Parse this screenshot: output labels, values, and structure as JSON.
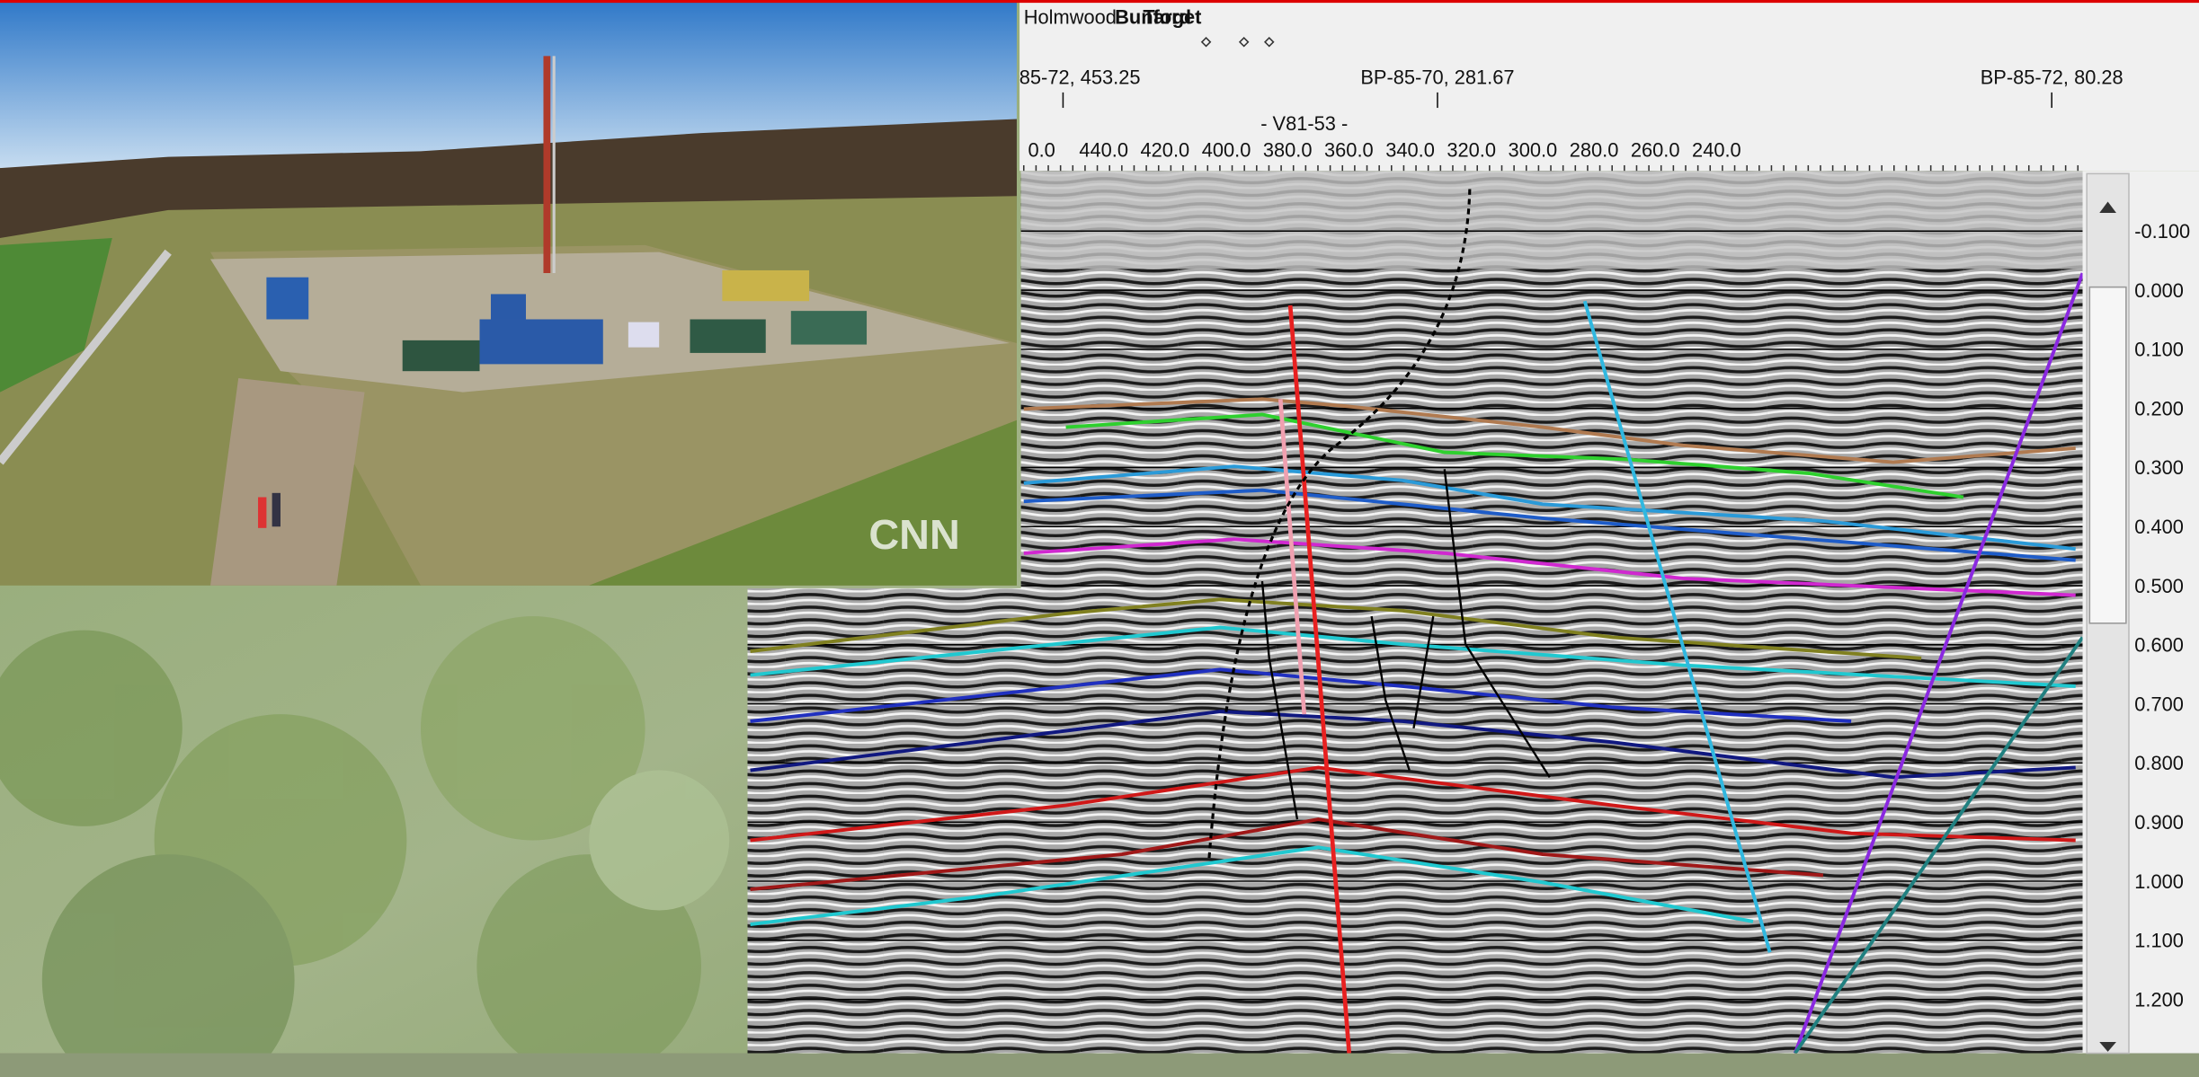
{
  "photo": {
    "watermark": "CNN"
  },
  "section": {
    "well_list": [
      "Holmwood",
      "Bunford",
      "Target"
    ],
    "well_ties": [
      "85-72, 453.25",
      "BP-85-70, 281.67",
      "BP-85-72, 80.28"
    ],
    "crossing_line": "- V81-53 -",
    "x_ticks": [
      "0.0",
      "440.0",
      "420.0",
      "400.0",
      "380.0",
      "360.0",
      "340.0",
      "320.0",
      "300.0",
      "280.0",
      "260.0",
      "240.0"
    ],
    "time_ticks": [
      "-0.100",
      "0.000",
      "0.100",
      "0.200",
      "0.300",
      "0.400",
      "0.500",
      "0.600",
      "0.700",
      "0.800",
      "0.900",
      "1.000",
      "1.100",
      "1.200"
    ]
  }
}
